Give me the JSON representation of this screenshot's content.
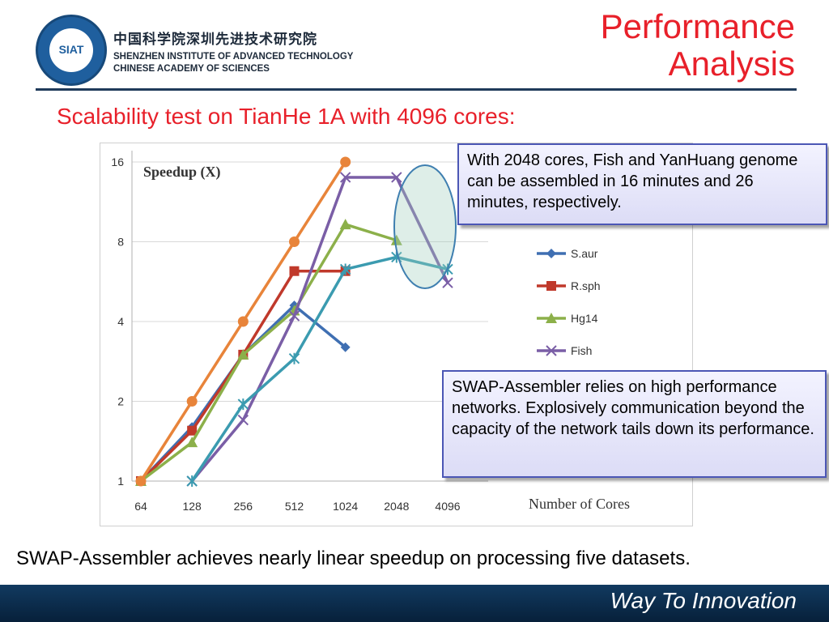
{
  "header": {
    "logo_text": "SIAT",
    "org_name_cn": "中国科学院深圳先进技术研究院",
    "org_name_en_line1": "SHENZHEN INSTITUTE OF ADVANCED TECHNOLOGY",
    "org_name_en_line2": "CHINESE ACADEMY OF SCIENCES",
    "title_line1": "Performance",
    "title_line2": "Analysis"
  },
  "subtitle": "Scalability test on TianHe 1A with 4096 cores:",
  "callouts": [
    "With 2048 cores, Fish and YanHuang genome can be assembled in 16 minutes and 26 minutes, respectively.",
    "SWAP-Assembler relies on high performance networks. Explosively communication beyond the capacity of the network tails down its performance."
  ],
  "caption": "SWAP-Assembler achieves nearly linear speedup on processing five datasets.",
  "footer": {
    "slogan": "Way To Innovation"
  },
  "colors": {
    "title_red": "#e8202a",
    "footer_navy": "#0b2a4a",
    "callout_border": "#4b56b5"
  },
  "chart_data": {
    "type": "line",
    "title": "",
    "ylabel": "Speedup (X)",
    "xlabel": "Number of Cores",
    "y_scale": "log2",
    "ylim": [
      1,
      16
    ],
    "yticks": [
      "1",
      "2",
      "4",
      "8",
      "16"
    ],
    "categories": [
      "64",
      "128",
      "256",
      "512",
      "1024",
      "2048",
      "4096"
    ],
    "grid": true,
    "legend_position": "right",
    "series": [
      {
        "name": "S.aur",
        "color": "#3f6fb2",
        "marker": "diamond",
        "values": [
          1,
          1.6,
          3,
          4.6,
          3.2,
          null,
          null
        ]
      },
      {
        "name": "R.sph",
        "color": "#c0392b",
        "marker": "square",
        "values": [
          1,
          1.55,
          3,
          6.2,
          6.2,
          null,
          null
        ]
      },
      {
        "name": "Hg14",
        "color": "#8cb04a",
        "marker": "triangle",
        "values": [
          1,
          1.4,
          3,
          4.4,
          9.3,
          8.1,
          null
        ]
      },
      {
        "name": "Fish",
        "color": "#7a5ea6",
        "marker": "x",
        "values": [
          null,
          1,
          1.7,
          4.2,
          14,
          14,
          5.6
        ]
      },
      {
        "name": "",
        "color": "#e8843a",
        "marker": "circle",
        "values": [
          1,
          2,
          4,
          8,
          16,
          null,
          null
        ]
      },
      {
        "name": "",
        "color": "#3b9bb0",
        "marker": "star",
        "values": [
          null,
          1,
          1.95,
          2.9,
          6.3,
          7,
          6.3
        ]
      }
    ]
  }
}
